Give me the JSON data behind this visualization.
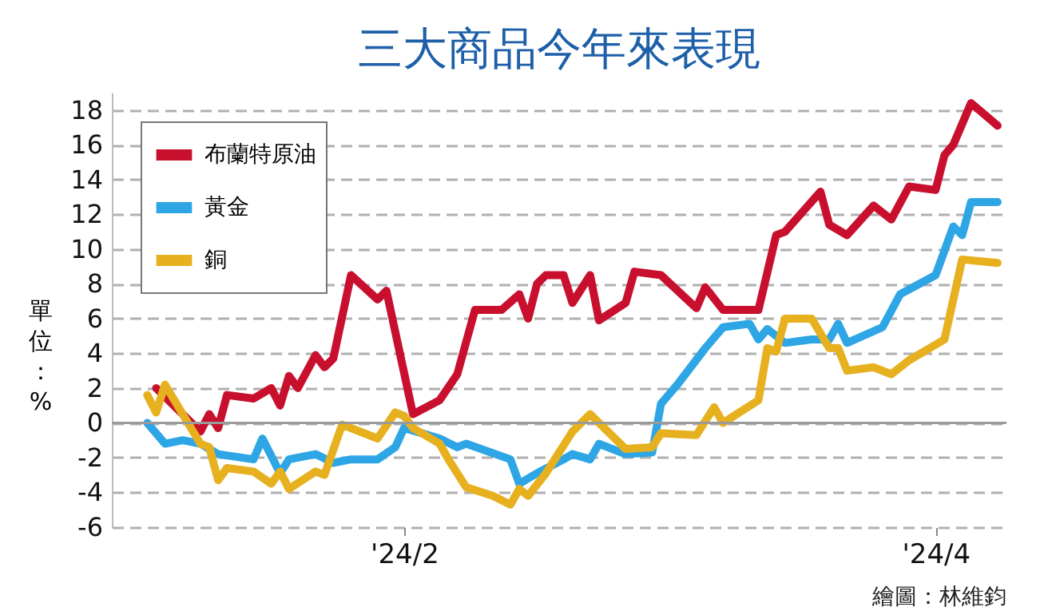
{
  "chart_data": {
    "type": "line",
    "title": "三大商品今年來表現",
    "ylabel": "單位：%",
    "annotations": [
      "繪圖：林維鈞"
    ],
    "xlim": [
      "2023-12-30",
      "2024-04-09"
    ],
    "xticks": [
      {
        "value": "2024-02-01",
        "label": "'24/2"
      },
      {
        "value": "2024-04-01",
        "label": "'24/4"
      }
    ],
    "ylim": [
      -6,
      19
    ],
    "yticks": [
      -6,
      -4,
      -2,
      0,
      2,
      4,
      6,
      8,
      10,
      12,
      14,
      16,
      18
    ],
    "grid": "y",
    "legend": "top left",
    "line_style": "solid",
    "ref_lines": [
      {
        "axis": "y",
        "value": 0,
        "color": "#9a9a9a"
      }
    ],
    "series": [
      {
        "name": "布蘭特原油",
        "color": "#c8102e",
        "x": [
          "2024-01-04",
          "2024-01-09",
          "2024-01-10",
          "2024-01-11",
          "2024-01-12",
          "2024-01-15",
          "2024-01-17",
          "2024-01-18",
          "2024-01-19",
          "2024-01-20",
          "2024-01-22",
          "2024-01-23",
          "2024-01-24",
          "2024-01-26",
          "2024-01-29",
          "2024-01-30",
          "2024-02-02",
          "2024-02-05",
          "2024-02-07",
          "2024-02-09",
          "2024-02-12",
          "2024-02-14",
          "2024-02-15",
          "2024-02-16",
          "2024-02-17",
          "2024-02-19",
          "2024-02-20",
          "2024-02-22",
          "2024-02-23",
          "2024-02-26",
          "2024-02-27",
          "2024-03-01",
          "2024-03-05",
          "2024-03-06",
          "2024-03-08",
          "2024-03-12",
          "2024-03-14",
          "2024-03-15",
          "2024-03-19",
          "2024-03-20",
          "2024-03-22",
          "2024-03-25",
          "2024-03-27",
          "2024-03-29",
          "2024-04-01",
          "2024-04-02",
          "2024-04-03",
          "2024-04-05",
          "2024-04-08"
        ],
        "values": [
          2,
          -0.5,
          0.5,
          -0.3,
          1.6,
          1.4,
          2,
          1,
          2.7,
          2,
          3.9,
          3.2,
          3.7,
          8.5,
          7.1,
          7.6,
          0.5,
          1.3,
          2.8,
          6.5,
          6.5,
          7.4,
          6,
          8,
          8.5,
          8.5,
          6.9,
          8.5,
          5.9,
          6.9,
          8.7,
          8.5,
          6.6,
          7.8,
          6.5,
          6.5,
          10.8,
          11,
          13.3,
          11.4,
          10.8,
          12.5,
          11.7,
          13.6,
          13.4,
          15.4,
          16,
          18.4,
          17.1
        ]
      },
      {
        "name": "黃金",
        "color": "#2ea6e6",
        "x": [
          "2024-01-03",
          "2024-01-05",
          "2024-01-07",
          "2024-01-09",
          "2024-01-11",
          "2024-01-15",
          "2024-01-16",
          "2024-01-18",
          "2024-01-19",
          "2024-01-22",
          "2024-01-24",
          "2024-01-26",
          "2024-01-29",
          "2024-01-31",
          "2024-02-01",
          "2024-02-05",
          "2024-02-07",
          "2024-02-08",
          "2024-02-13",
          "2024-02-14",
          "2024-02-16",
          "2024-02-19",
          "2024-02-20",
          "2024-02-22",
          "2024-02-23",
          "2024-02-26",
          "2024-02-29",
          "2024-03-01",
          "2024-03-03",
          "2024-03-06",
          "2024-03-08",
          "2024-03-11",
          "2024-03-12",
          "2024-03-13",
          "2024-03-15",
          "2024-03-18",
          "2024-03-20",
          "2024-03-21",
          "2024-03-22",
          "2024-03-26",
          "2024-03-28",
          "2024-04-01",
          "2024-04-03",
          "2024-04-04",
          "2024-04-05",
          "2024-04-08"
        ],
        "values": [
          0,
          -1.2,
          -1,
          -1.2,
          -1.8,
          -2.1,
          -0.9,
          -2.9,
          -2.1,
          -1.8,
          -2.3,
          -2.1,
          -2.1,
          -1.4,
          -0.3,
          -0.9,
          -1.4,
          -1.2,
          -2.1,
          -3.5,
          -2.9,
          -2.1,
          -1.8,
          -2.1,
          -1.2,
          -1.8,
          -1.7,
          1.1,
          2.3,
          4.3,
          5.5,
          5.7,
          4.8,
          5.4,
          4.6,
          4.8,
          4.8,
          5.7,
          4.6,
          5.5,
          7.4,
          8.5,
          11.3,
          10.8,
          12.7,
          12.7
        ]
      },
      {
        "name": "銅",
        "color": "#e6b01e",
        "x": [
          "2024-01-03",
          "2024-01-04",
          "2024-01-05",
          "2024-01-09",
          "2024-01-10",
          "2024-01-11",
          "2024-01-12",
          "2024-01-15",
          "2024-01-17",
          "2024-01-18",
          "2024-01-19",
          "2024-01-22",
          "2024-01-23",
          "2024-01-25",
          "2024-01-29",
          "2024-01-31",
          "2024-02-01",
          "2024-02-02",
          "2024-02-05",
          "2024-02-06",
          "2024-02-08",
          "2024-02-11",
          "2024-02-13",
          "2024-02-14",
          "2024-02-15",
          "2024-02-17",
          "2024-02-20",
          "2024-02-22",
          "2024-02-26",
          "2024-02-29",
          "2024-03-01",
          "2024-03-05",
          "2024-03-07",
          "2024-03-08",
          "2024-03-12",
          "2024-03-13",
          "2024-03-14",
          "2024-03-15",
          "2024-03-18",
          "2024-03-20",
          "2024-03-21",
          "2024-03-22",
          "2024-03-25",
          "2024-03-27",
          "2024-03-29",
          "2024-04-02",
          "2024-04-04",
          "2024-04-08"
        ],
        "values": [
          1.6,
          0.6,
          2.2,
          -1.2,
          -1.4,
          -3.3,
          -2.6,
          -2.8,
          -3.5,
          -2.8,
          -3.8,
          -2.8,
          -3,
          -0.1,
          -0.9,
          0.6,
          0.4,
          -0.3,
          -1.2,
          -2.1,
          -3.7,
          -4.2,
          -4.7,
          -3.8,
          -4.2,
          -2.9,
          -0.5,
          0.5,
          -1.5,
          -1.4,
          -0.6,
          -0.7,
          0.9,
          0,
          1.3,
          4.3,
          4.1,
          6,
          6,
          4.3,
          4.3,
          3,
          3.2,
          2.8,
          3.6,
          4.8,
          9.4,
          9.2
        ]
      }
    ]
  }
}
